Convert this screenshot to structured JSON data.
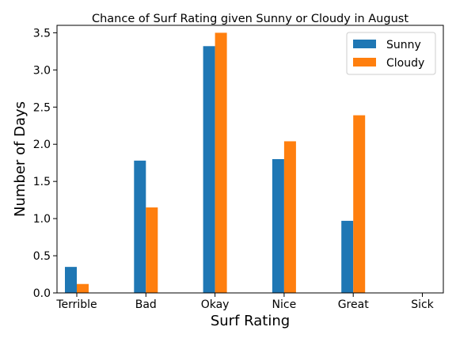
{
  "chart_data": {
    "type": "bar",
    "title": "Chance of Surf Rating given Sunny or Cloudy in August",
    "xlabel": "Surf Rating",
    "ylabel": "Number of Days",
    "categories": [
      "Terrible",
      "Bad",
      "Okay",
      "Nice",
      "Great",
      "Sick"
    ],
    "series": [
      {
        "name": "Sunny",
        "color": "#1f77b4",
        "values": [
          0.35,
          1.78,
          3.32,
          1.8,
          0.97,
          0
        ]
      },
      {
        "name": "Cloudy",
        "color": "#ff7f0e",
        "values": [
          0.12,
          1.15,
          3.5,
          2.04,
          2.39,
          0
        ]
      }
    ],
    "ylim": [
      0,
      3.6
    ],
    "yticks": [
      0.0,
      0.5,
      1.0,
      1.5,
      2.0,
      2.5,
      3.0,
      3.5
    ],
    "legend_position": "top-right",
    "grid": false
  }
}
